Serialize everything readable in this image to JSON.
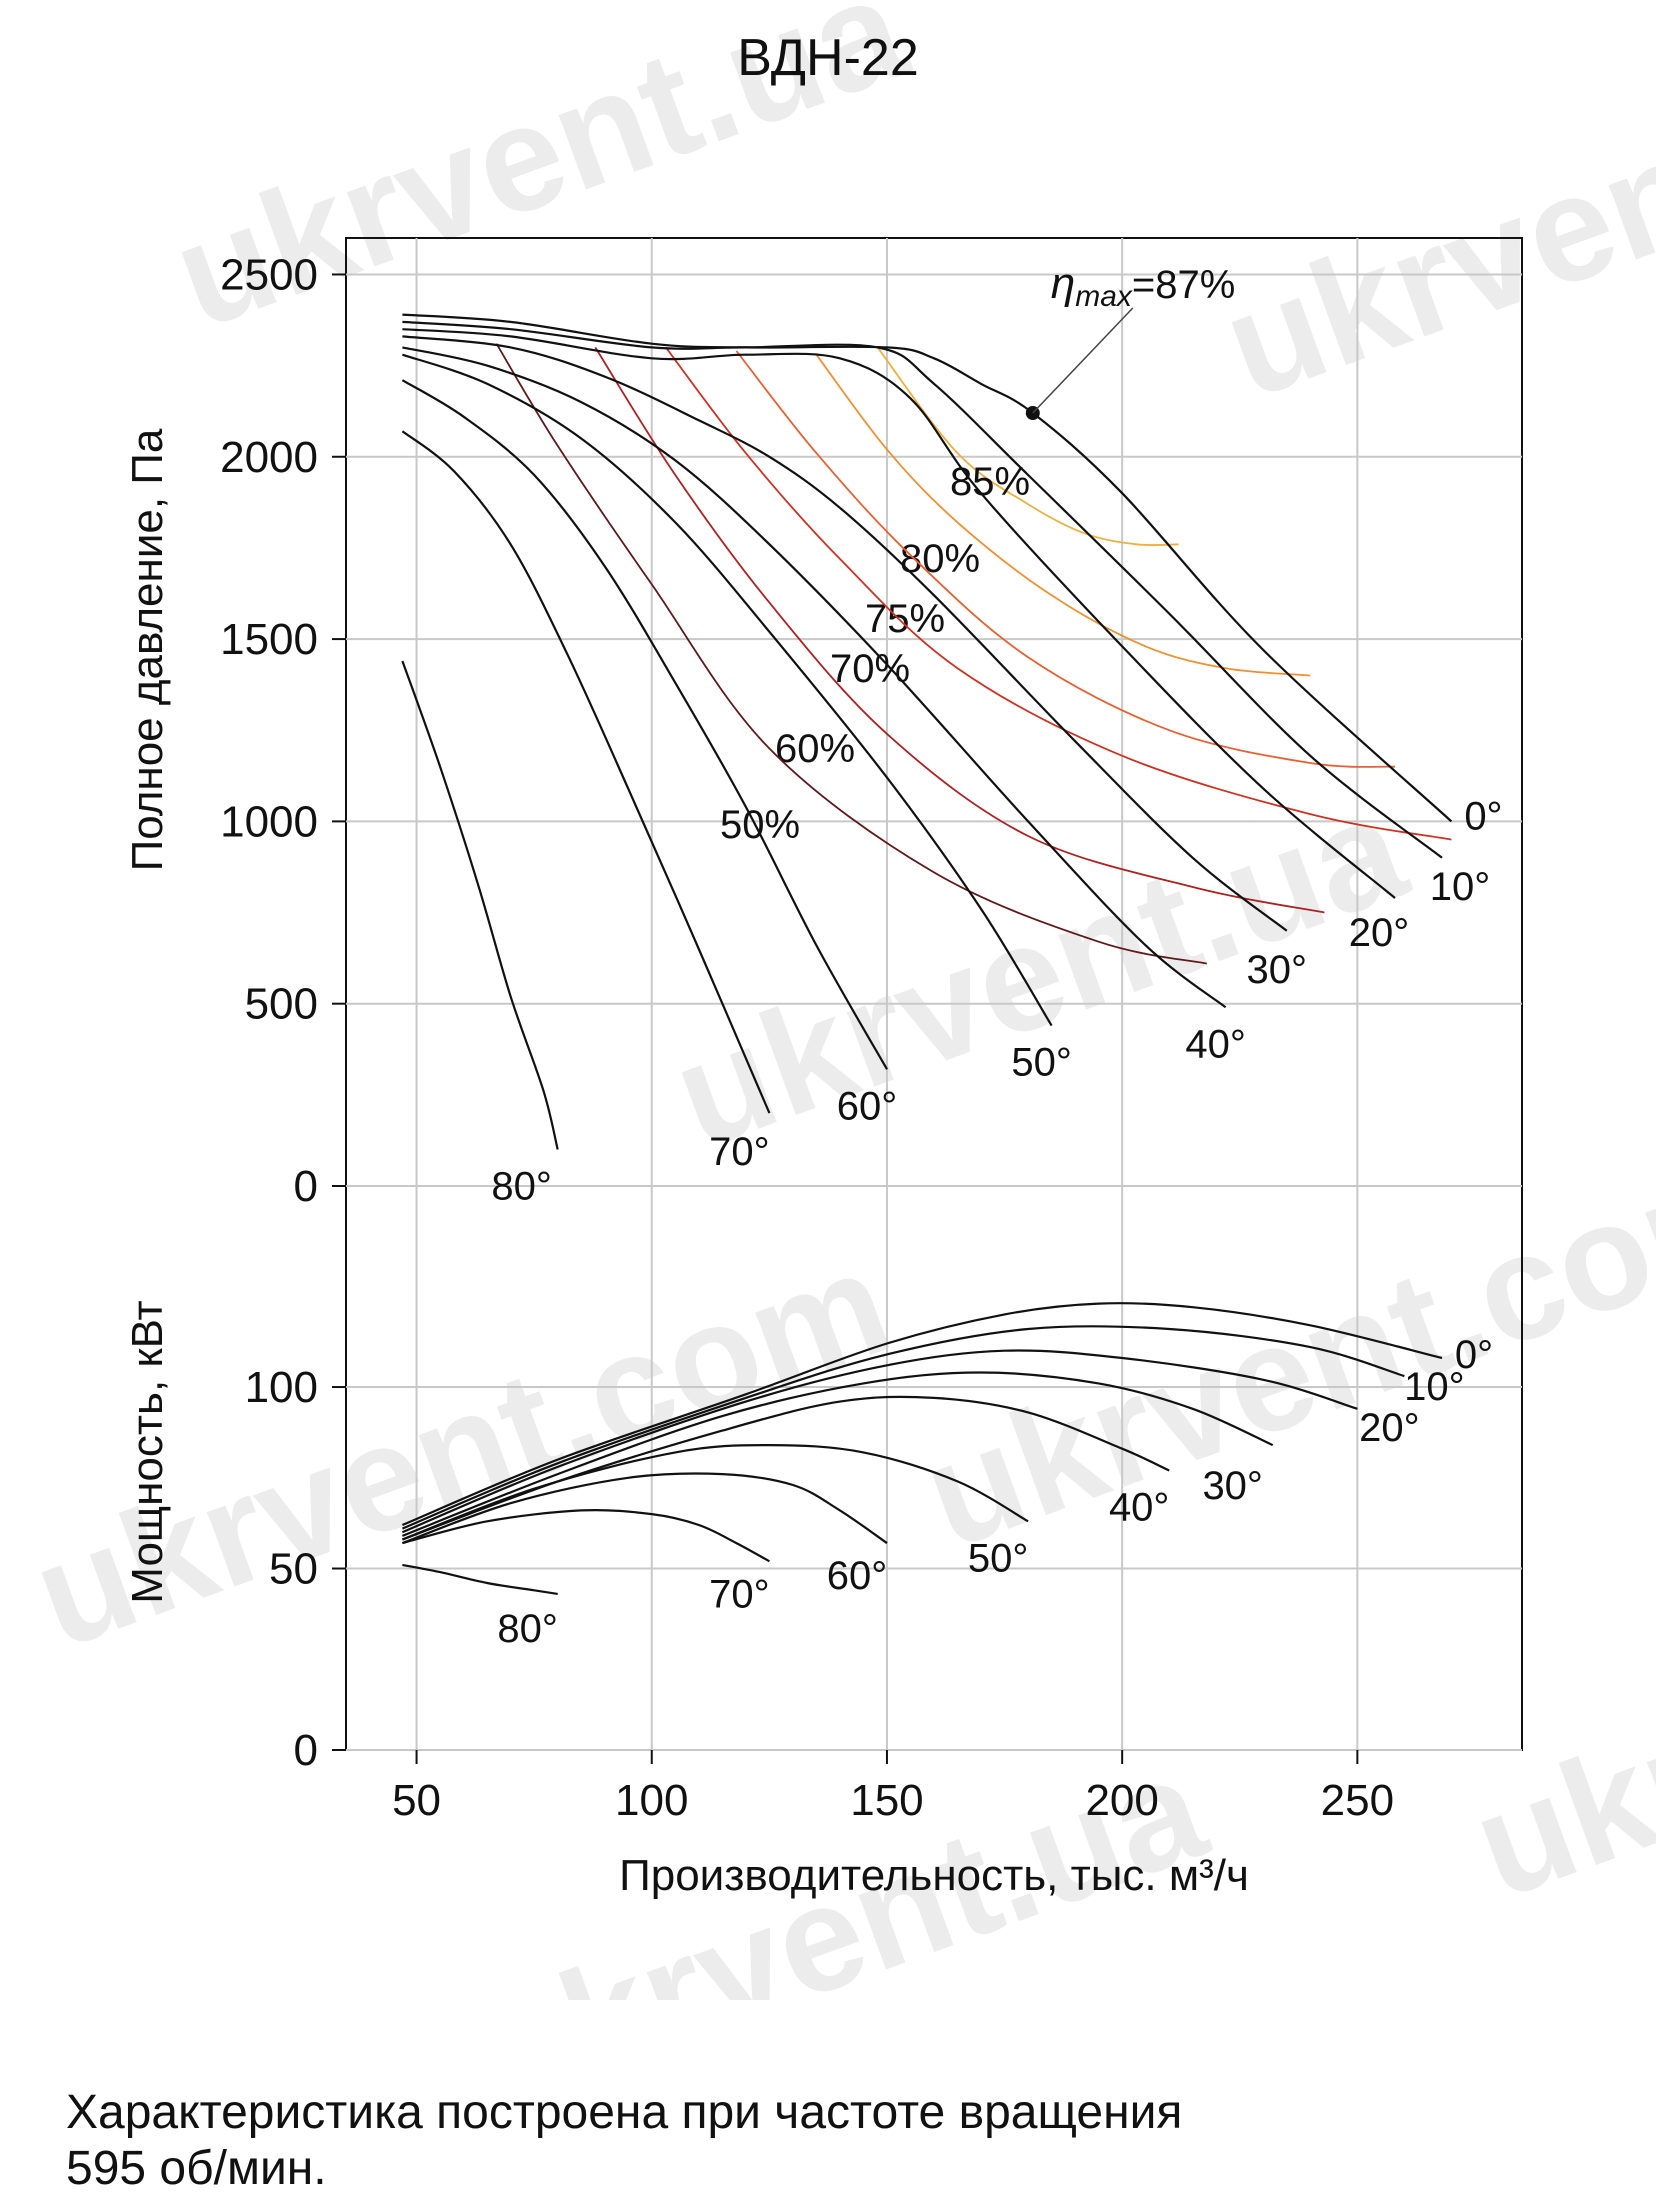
{
  "title": "ВДН-22",
  "caption_line1": "Характеристика построена при частоте вращения",
  "caption_line2": "595 об/мин.",
  "watermark": "ukrvent.ua ukrvent.com",
  "chart_data": {
    "type": "line",
    "xlabel": "Производительность, тыс. м³/ч",
    "xlim": [
      35,
      285
    ],
    "x_ticks": [
      50,
      100,
      150,
      200,
      250
    ],
    "pressure_panel": {
      "ylabel": "Полное давление, Па",
      "ylim": [
        0,
        2600
      ],
      "y_ticks": [
        0,
        500,
        1000,
        1500,
        2000,
        2500
      ],
      "series": [
        {
          "name": "0°",
          "x": [
            47,
            70,
            100,
            120,
            150,
            160,
            170,
            181,
            200,
            230,
            270
          ],
          "y": [
            2390,
            2370,
            2310,
            2300,
            2300,
            2270,
            2200,
            2120,
            1900,
            1470,
            1000
          ]
        },
        {
          "name": "10°",
          "x": [
            47,
            70,
            100,
            120,
            148,
            160,
            180,
            210,
            240,
            268
          ],
          "y": [
            2370,
            2350,
            2300,
            2300,
            2300,
            2200,
            1950,
            1570,
            1180,
            900
          ]
        },
        {
          "name": "20°",
          "x": [
            47,
            70,
            100,
            120,
            140,
            155,
            170,
            200,
            230,
            258
          ],
          "y": [
            2350,
            2330,
            2270,
            2280,
            2270,
            2160,
            1900,
            1480,
            1090,
            790
          ]
        },
        {
          "name": "30°",
          "x": [
            47,
            70,
            90,
            110,
            125,
            140,
            160,
            190,
            215,
            235
          ],
          "y": [
            2330,
            2300,
            2220,
            2100,
            2000,
            1860,
            1620,
            1220,
            900,
            700
          ]
        },
        {
          "name": "40°",
          "x": [
            47,
            65,
            85,
            105,
            125,
            150,
            180,
            205,
            222
          ],
          "y": [
            2300,
            2250,
            2150,
            1990,
            1760,
            1430,
            1000,
            660,
            490
          ]
        },
        {
          "name": "50°",
          "x": [
            47,
            65,
            85,
            105,
            125,
            150,
            170,
            185
          ],
          "y": [
            2280,
            2200,
            2050,
            1820,
            1520,
            1120,
            760,
            440
          ]
        },
        {
          "name": "60°",
          "x": [
            47,
            60,
            75,
            90,
            105,
            120,
            135,
            150
          ],
          "y": [
            2210,
            2110,
            1950,
            1700,
            1380,
            1040,
            660,
            320
          ]
        },
        {
          "name": "70°",
          "x": [
            47,
            58,
            70,
            82,
            95,
            110,
            125
          ],
          "y": [
            2070,
            1960,
            1760,
            1460,
            1090,
            650,
            200
          ]
        },
        {
          "name": "80°",
          "x": [
            47,
            55,
            63,
            70,
            77,
            80
          ],
          "y": [
            1440,
            1150,
            830,
            520,
            260,
            100
          ]
        }
      ],
      "efficiency_lines": [
        {
          "name": "85%",
          "color": "#f0b040",
          "x": [
            148,
            165,
            180,
            192,
            203,
            212
          ],
          "y": [
            2300,
            2010,
            1870,
            1790,
            1760,
            1760
          ]
        },
        {
          "name": "80%",
          "color": "#f09030",
          "x": [
            135,
            150,
            165,
            185,
            205,
            222,
            240
          ],
          "y": [
            2280,
            2020,
            1820,
            1620,
            1480,
            1420,
            1400
          ]
        },
        {
          "name": "75%",
          "color": "#e86030",
          "x": [
            118,
            135,
            155,
            180,
            210,
            240,
            258
          ],
          "y": [
            2290,
            2010,
            1730,
            1450,
            1250,
            1160,
            1150
          ]
        },
        {
          "name": "70%",
          "color": "#d03020",
          "x": [
            103,
            120,
            140,
            165,
            200,
            240,
            270
          ],
          "y": [
            2300,
            2010,
            1720,
            1420,
            1180,
            1020,
            950
          ]
        },
        {
          "name": "60%",
          "color": "#b02020",
          "x": [
            88,
            105,
            125,
            150,
            180,
            215,
            243
          ],
          "y": [
            2300,
            1950,
            1600,
            1240,
            960,
            820,
            750
          ]
        },
        {
          "name": "50%",
          "color": "#601818",
          "x": [
            67,
            80,
            100,
            125,
            160,
            195,
            218
          ],
          "y": [
            2310,
            2030,
            1650,
            1200,
            860,
            670,
            610
          ]
        }
      ],
      "annotation": {
        "label_prefix": "η",
        "label_sub": "max",
        "label_value": "=87%",
        "x": 181,
        "y": 2120
      }
    },
    "power_panel": {
      "ylabel": "Мощность, кВт",
      "ylim": [
        0,
        135
      ],
      "y_ticks": [
        0,
        50,
        100
      ],
      "series": [
        {
          "name": "0°",
          "x": [
            47,
            80,
            120,
            150,
            175,
            195,
            215,
            240,
            268
          ],
          "y": [
            62,
            80,
            98,
            112,
            120,
            123,
            122,
            117,
            108
          ]
        },
        {
          "name": "10°",
          "x": [
            47,
            80,
            120,
            150,
            180,
            210,
            240,
            260
          ],
          "y": [
            61,
            79,
            97,
            109,
            116,
            116,
            111,
            103
          ]
        },
        {
          "name": "20°",
          "x": [
            47,
            80,
            120,
            150,
            175,
            200,
            230,
            250
          ],
          "y": [
            60,
            78,
            96,
            106,
            110,
            108,
            102,
            94
          ]
        },
        {
          "name": "30°",
          "x": [
            47,
            80,
            115,
            145,
            170,
            195,
            215,
            232
          ],
          "y": [
            59,
            76,
            92,
            101,
            104,
            101,
            94,
            84
          ]
        },
        {
          "name": "40°",
          "x": [
            47,
            80,
            115,
            140,
            160,
            180,
            200,
            210
          ],
          "y": [
            58,
            74,
            88,
            96,
            97,
            93,
            83,
            77
          ]
        },
        {
          "name": "50°",
          "x": [
            47,
            75,
            105,
            125,
            145,
            165,
            180
          ],
          "y": [
            58,
            72,
            82,
            84,
            82,
            74,
            63
          ]
        },
        {
          "name": "60°",
          "x": [
            47,
            70,
            95,
            115,
            130,
            140,
            150
          ],
          "y": [
            57,
            68,
            75,
            76,
            73,
            66,
            57
          ]
        },
        {
          "name": "70°",
          "x": [
            47,
            65,
            85,
            100,
            110,
            118,
            125
          ],
          "y": [
            57,
            63,
            66,
            65,
            62,
            57,
            52
          ]
        },
        {
          "name": "80°",
          "x": [
            47,
            55,
            65,
            75,
            80
          ],
          "y": [
            51,
            49,
            46,
            44,
            43
          ]
        }
      ]
    },
    "legend": "labels at curve ends"
  }
}
